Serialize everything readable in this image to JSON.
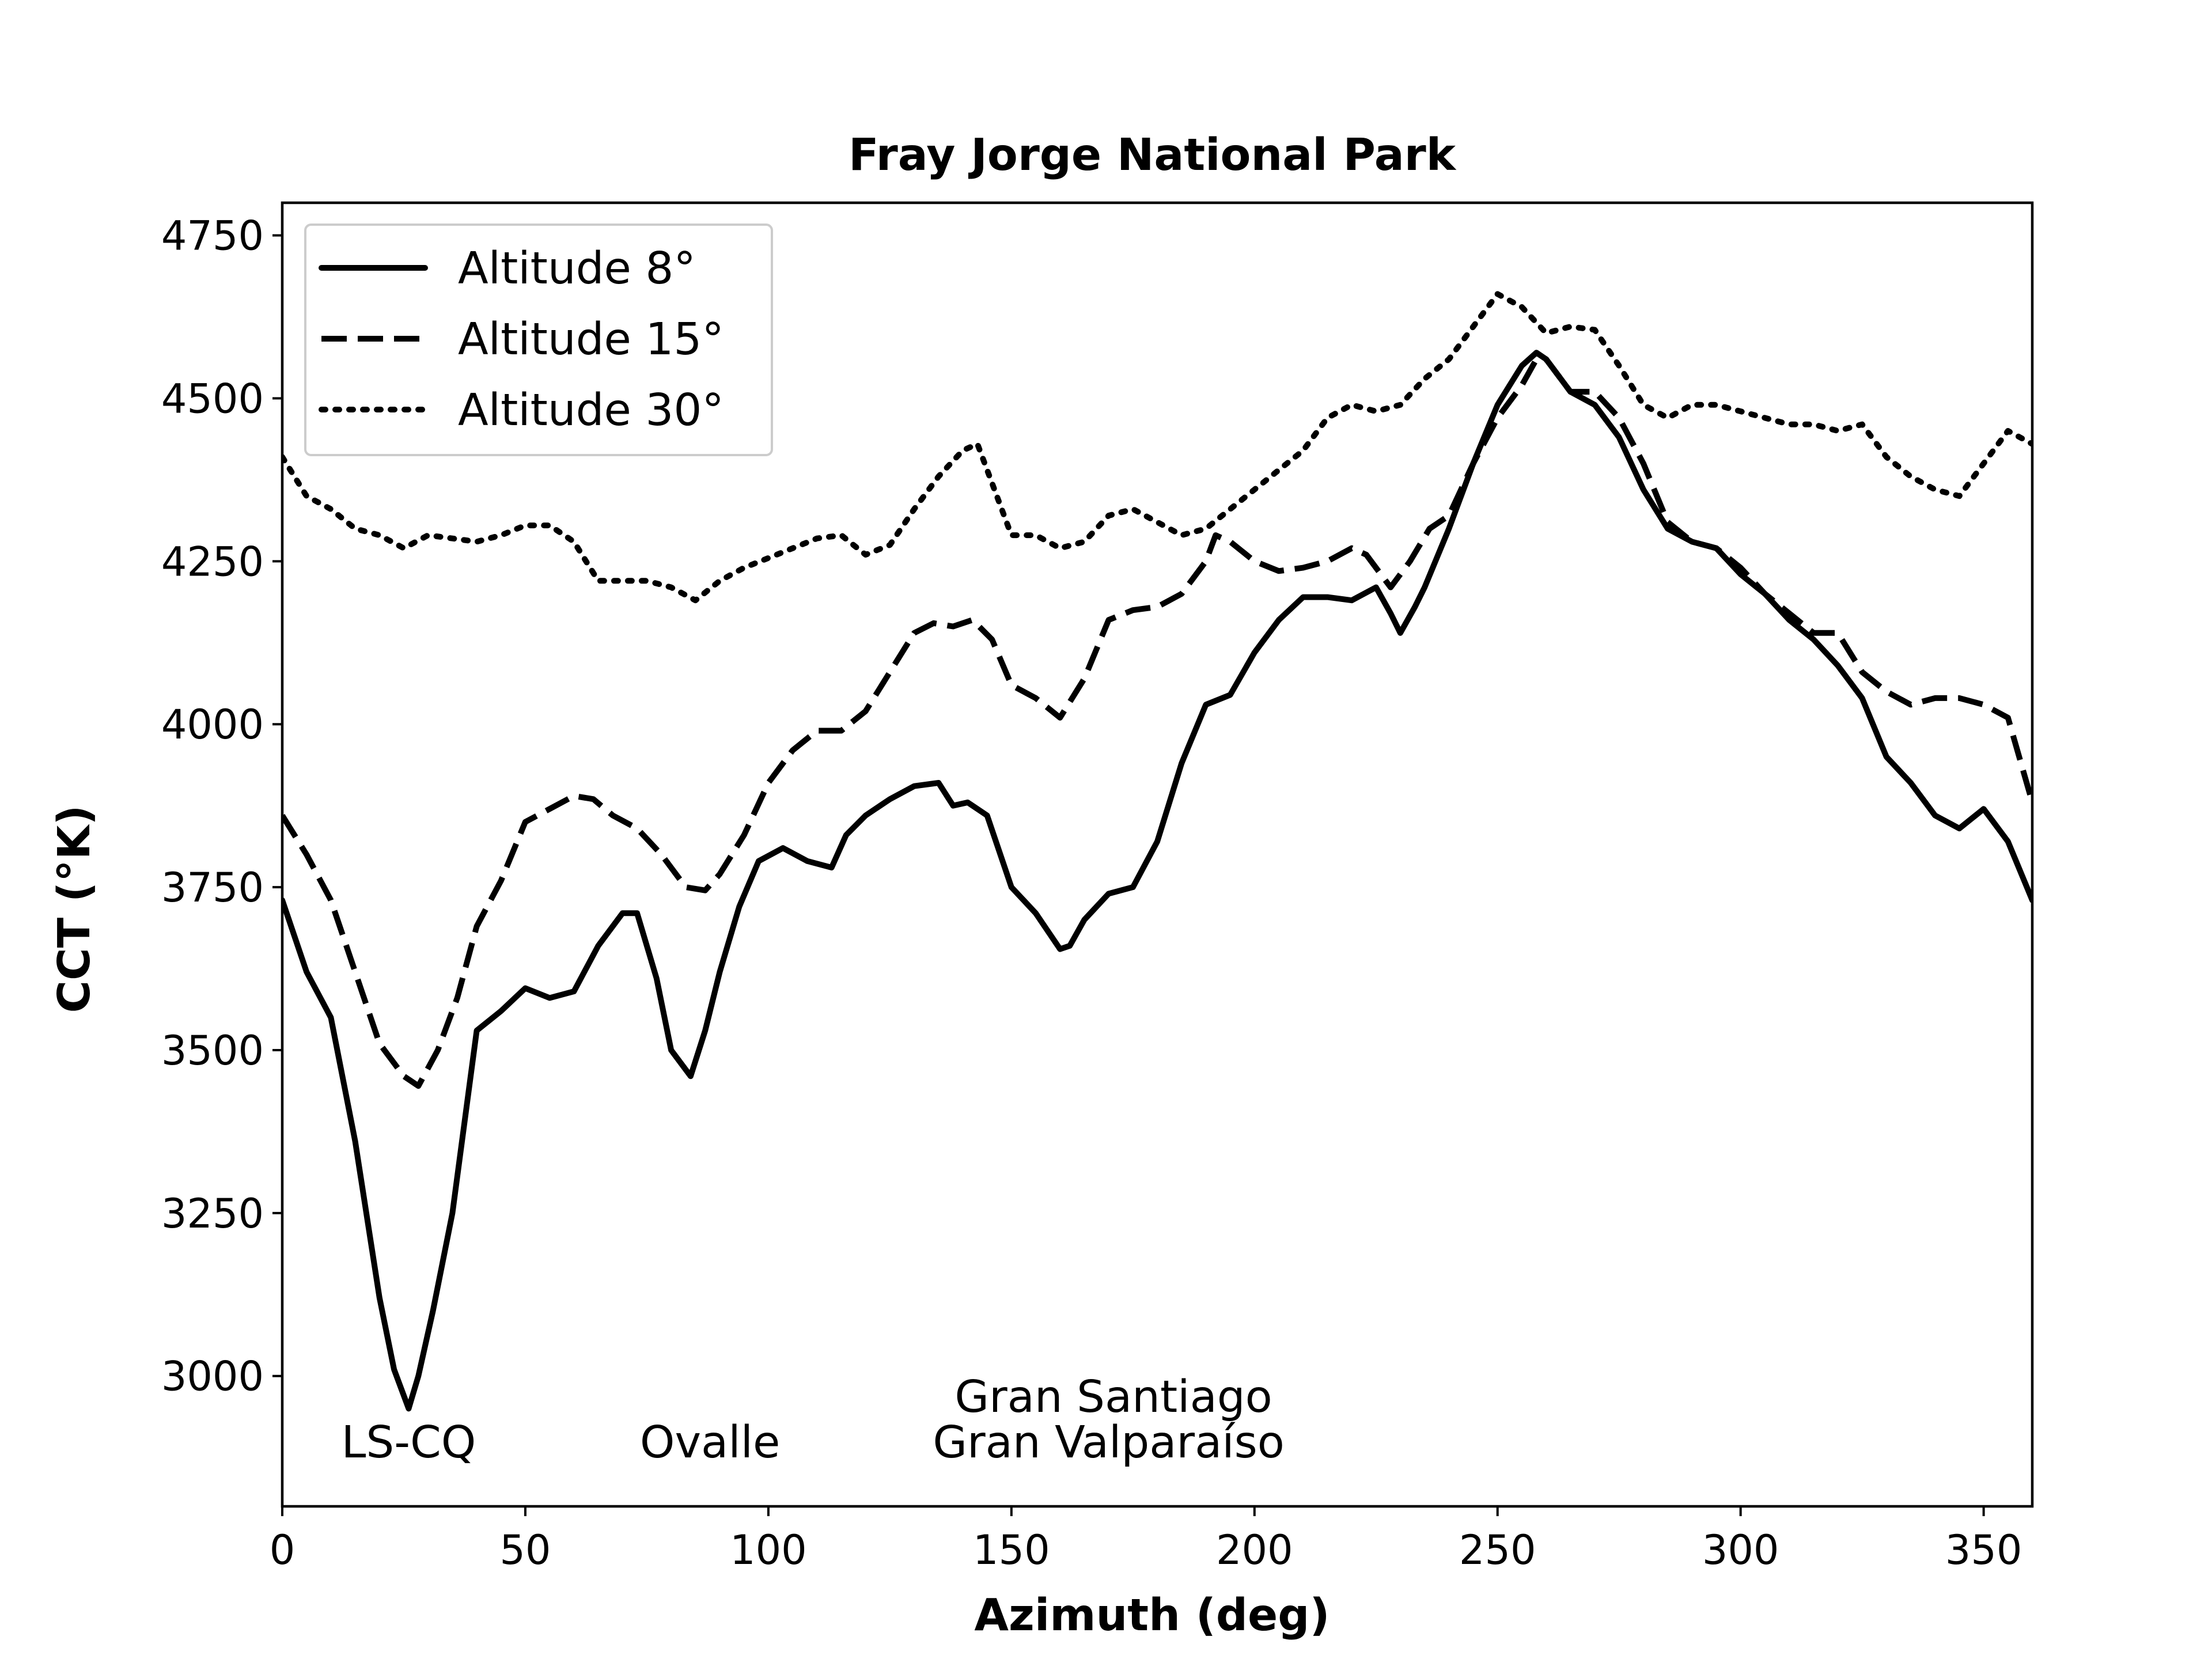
{
  "chart_data": {
    "type": "line",
    "title": "Fray Jorge National Park",
    "xlabel": "Azimuth (deg)",
    "ylabel": "CCT (°K)",
    "xlim": [
      0,
      360
    ],
    "ylim": [
      2800,
      4800
    ],
    "xticks": [
      0,
      50,
      100,
      150,
      200,
      250,
      300,
      350
    ],
    "yticks": [
      3000,
      3250,
      3500,
      3750,
      4000,
      4250,
      4500,
      4750
    ],
    "grid": false,
    "legend": "upper-left",
    "annotations": [
      {
        "text": "LS-CQ",
        "x": 26,
        "y": 2875
      },
      {
        "text": "Ovalle",
        "x": 88,
        "y": 2875
      },
      {
        "text": "Gran Santiago",
        "x": 171,
        "y": 2945
      },
      {
        "text": "Gran Valparaíso",
        "x": 170,
        "y": 2875
      }
    ],
    "series": [
      {
        "name": "Altitude 8°",
        "style": "solid",
        "color": "#000000",
        "x": [
          0,
          5,
          10,
          15,
          20,
          23,
          26,
          28,
          31,
          35,
          40,
          45,
          50,
          55,
          60,
          65,
          70,
          73,
          77,
          80,
          84,
          87,
          90,
          94,
          98,
          103,
          108,
          113,
          116,
          120,
          125,
          130,
          135,
          138,
          141,
          145,
          150,
          155,
          160,
          162,
          165,
          170,
          175,
          180,
          185,
          190,
          195,
          200,
          205,
          210,
          215,
          220,
          225,
          228,
          230,
          233,
          235,
          240,
          245,
          250,
          255,
          258,
          260,
          265,
          270,
          275,
          280,
          285,
          290,
          295,
          300,
          305,
          310,
          315,
          320,
          325,
          330,
          335,
          340,
          345,
          350,
          355,
          360
        ],
        "y": [
          3730,
          3620,
          3550,
          3360,
          3120,
          3010,
          2950,
          3000,
          3100,
          3250,
          3530,
          3560,
          3595,
          3580,
          3590,
          3660,
          3710,
          3710,
          3610,
          3500,
          3460,
          3530,
          3620,
          3720,
          3790,
          3810,
          3790,
          3780,
          3830,
          3860,
          3885,
          3905,
          3910,
          3875,
          3880,
          3860,
          3750,
          3710,
          3655,
          3660,
          3700,
          3740,
          3750,
          3820,
          3940,
          4030,
          4045,
          4110,
          4160,
          4195,
          4195,
          4190,
          4210,
          4170,
          4140,
          4180,
          4210,
          4300,
          4400,
          4490,
          4550,
          4570,
          4560,
          4510,
          4490,
          4440,
          4360,
          4300,
          4280,
          4270,
          4230,
          4200,
          4160,
          4130,
          4090,
          4040,
          3950,
          3910,
          3860,
          3840,
          3870,
          3820,
          3730
        ]
      },
      {
        "name": "Altitude 15°",
        "style": "dashed",
        "color": "#000000",
        "x": [
          0,
          5,
          10,
          15,
          20,
          25,
          28,
          32,
          36,
          40,
          45,
          50,
          55,
          60,
          64,
          68,
          73,
          78,
          83,
          87,
          90,
          95,
          100,
          105,
          110,
          115,
          120,
          125,
          130,
          134,
          138,
          142,
          146,
          150,
          155,
          160,
          165,
          170,
          175,
          180,
          185,
          190,
          192,
          195,
          200,
          205,
          210,
          215,
          220,
          223,
          226,
          228,
          232,
          236,
          240,
          245,
          250,
          255,
          258,
          260,
          265,
          270,
          275,
          280,
          285,
          290,
          295,
          300,
          305,
          310,
          315,
          320,
          325,
          330,
          335,
          340,
          345,
          350,
          355,
          360
        ],
        "y": [
          3860,
          3800,
          3730,
          3620,
          3510,
          3460,
          3445,
          3500,
          3580,
          3690,
          3760,
          3850,
          3870,
          3890,
          3885,
          3860,
          3840,
          3800,
          3750,
          3745,
          3770,
          3830,
          3910,
          3960,
          3990,
          3990,
          4020,
          4080,
          4140,
          4155,
          4150,
          4160,
          4130,
          4060,
          4040,
          4010,
          4070,
          4160,
          4175,
          4180,
          4200,
          4250,
          4290,
          4280,
          4250,
          4235,
          4240,
          4250,
          4270,
          4260,
          4230,
          4210,
          4250,
          4300,
          4320,
          4400,
          4470,
          4520,
          4560,
          4560,
          4510,
          4510,
          4470,
          4400,
          4310,
          4280,
          4270,
          4240,
          4200,
          4170,
          4140,
          4140,
          4080,
          4050,
          4030,
          4040,
          4040,
          4030,
          4010,
          3880
        ]
      },
      {
        "name": "Altitude 30°",
        "style": "dotted",
        "color": "#000000",
        "x": [
          0,
          5,
          10,
          15,
          20,
          25,
          30,
          35,
          40,
          45,
          50,
          55,
          60,
          65,
          70,
          75,
          80,
          85,
          90,
          95,
          100,
          105,
          110,
          115,
          120,
          125,
          130,
          135,
          140,
          143,
          146,
          150,
          155,
          160,
          165,
          170,
          175,
          180,
          185,
          190,
          195,
          200,
          205,
          210,
          215,
          220,
          225,
          230,
          235,
          240,
          245,
          250,
          255,
          260,
          265,
          270,
          275,
          280,
          285,
          290,
          295,
          300,
          305,
          310,
          315,
          320,
          325,
          330,
          335,
          340,
          345,
          350,
          355,
          360
        ],
        "y": [
          4410,
          4350,
          4330,
          4300,
          4290,
          4270,
          4290,
          4285,
          4280,
          4290,
          4305,
          4305,
          4280,
          4220,
          4220,
          4220,
          4210,
          4190,
          4220,
          4240,
          4255,
          4270,
          4285,
          4290,
          4260,
          4275,
          4330,
          4380,
          4420,
          4430,
          4370,
          4290,
          4290,
          4270,
          4280,
          4320,
          4330,
          4310,
          4290,
          4300,
          4330,
          4360,
          4390,
          4420,
          4470,
          4490,
          4480,
          4490,
          4530,
          4560,
          4610,
          4660,
          4640,
          4600,
          4610,
          4605,
          4550,
          4490,
          4470,
          4490,
          4490,
          4480,
          4470,
          4460,
          4460,
          4450,
          4460,
          4410,
          4380,
          4360,
          4350,
          4400,
          4450,
          4430
        ]
      }
    ]
  }
}
